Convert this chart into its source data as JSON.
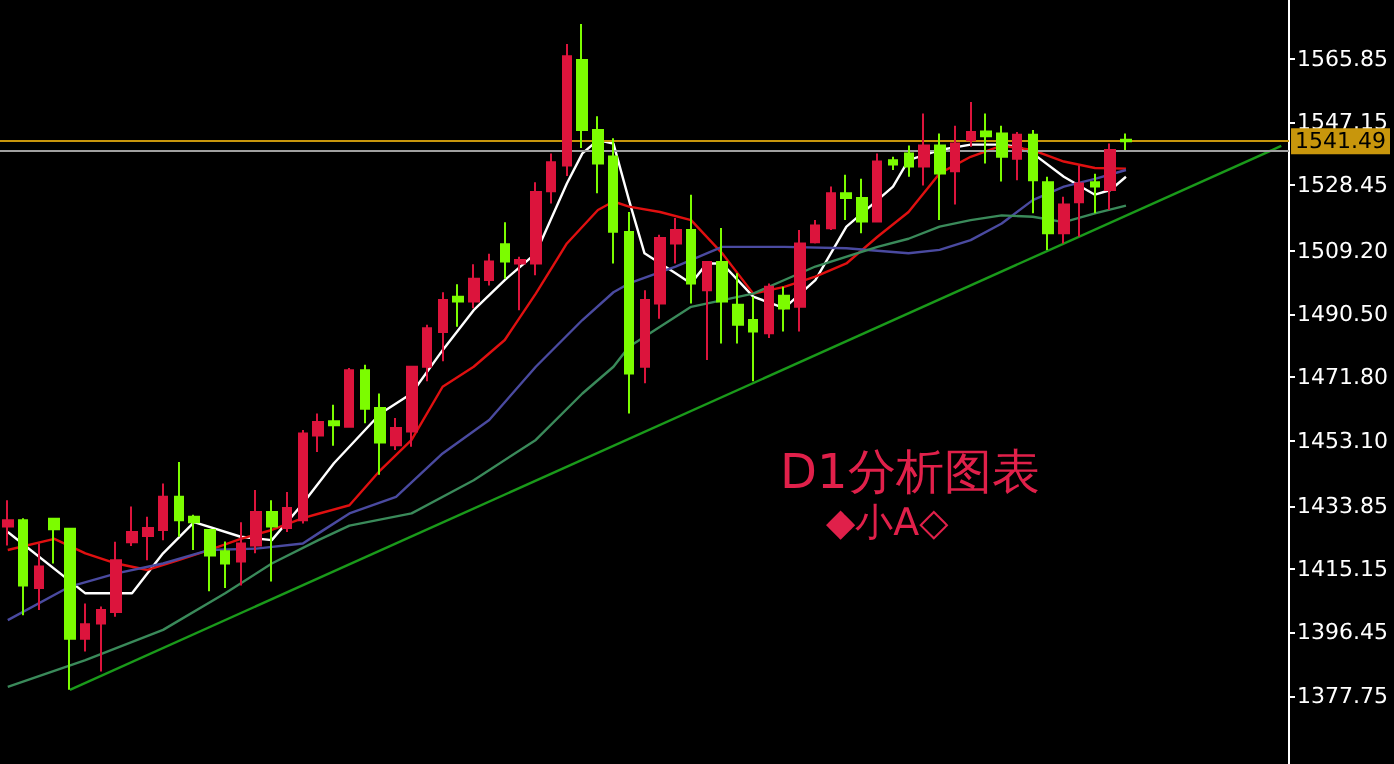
{
  "chart_data": {
    "type": "candlestick",
    "categories": [
      null,
      null,
      null,
      null,
      null,
      null,
      null,
      null,
      null,
      null,
      null,
      null,
      null,
      null,
      null,
      null,
      null,
      null,
      null,
      null,
      null,
      null,
      null,
      null,
      null,
      null,
      null,
      null,
      null,
      null,
      null,
      null,
      null,
      null,
      null,
      null,
      null,
      null,
      null,
      null,
      null,
      null,
      null,
      null,
      null,
      null,
      null,
      null,
      null,
      null,
      null,
      null,
      null,
      null,
      null,
      null,
      null,
      null,
      null,
      null,
      null,
      null,
      null,
      null,
      null,
      null,
      null,
      null,
      null,
      null,
      null,
      null,
      null,
      null,
      null,
      null,
      null,
      null,
      null,
      null,
      null,
      null,
      null
    ],
    "ohlc": [
      [
        1427.7,
        1435.5,
        1422.1,
        1429.6
      ],
      [
        1429.6,
        1430.2,
        1401.5,
        1410.3
      ],
      [
        1409.6,
        1422.7,
        1403.1,
        1415.9
      ],
      [
        1430.0,
        1430.0,
        1416.8,
        1426.9
      ],
      [
        1427.1,
        1427.1,
        1379.5,
        1394.6
      ],
      [
        1394.6,
        1405.0,
        1390.8,
        1398.9
      ],
      [
        1399.1,
        1404.1,
        1384.9,
        1403.1
      ],
      [
        1402.5,
        1423.2,
        1401.1,
        1417.8
      ],
      [
        1423.1,
        1433.6,
        1422.0,
        1426.1
      ],
      [
        1424.9,
        1430.6,
        1417.8,
        1427.3
      ],
      [
        1426.7,
        1440.4,
        1423.7,
        1436.5
      ],
      [
        1436.5,
        1446.8,
        1424.7,
        1429.6
      ],
      [
        1430.6,
        1431.2,
        1420.8,
        1429.0
      ],
      [
        1426.7,
        1426.7,
        1408.6,
        1419.2
      ],
      [
        1420.4,
        1423.3,
        1409.6,
        1416.8
      ],
      [
        1417.4,
        1429.0,
        1410.3,
        1422.7
      ],
      [
        1422.1,
        1438.5,
        1419.8,
        1432.0
      ],
      [
        1432.0,
        1435.5,
        1411.5,
        1427.7
      ],
      [
        1427.3,
        1437.9,
        1426.1,
        1433.2
      ],
      [
        1429.6,
        1456.2,
        1428.6,
        1455.2
      ],
      [
        1454.6,
        1461.1,
        1449.7,
        1458.6
      ],
      [
        1458.8,
        1463.7,
        1451.6,
        1457.6
      ],
      [
        1457.2,
        1474.5,
        1457.2,
        1473.9
      ],
      [
        1473.9,
        1475.5,
        1458.2,
        1462.5
      ],
      [
        1462.7,
        1467.0,
        1443.0,
        1452.5
      ],
      [
        1451.7,
        1459.8,
        1450.3,
        1456.8
      ],
      [
        1455.8,
        1474.9,
        1451.3,
        1474.9
      ],
      [
        1474.9,
        1487.3,
        1470.6,
        1486.3
      ],
      [
        1485.2,
        1496.9,
        1476.5,
        1494.6
      ],
      [
        1495.6,
        1499.3,
        1486.7,
        1494.2
      ],
      [
        1494.2,
        1505.2,
        1492.2,
        1500.9
      ],
      [
        1500.5,
        1508.3,
        1498.9,
        1506.0
      ],
      [
        1511.1,
        1517.6,
        1500.9,
        1506.0
      ],
      [
        1505.4,
        1507.4,
        1491.6,
        1506.4
      ],
      [
        1505.4,
        1529.4,
        1501.9,
        1526.5
      ],
      [
        1526.7,
        1537.9,
        1523.1,
        1535.3
      ],
      [
        1534.3,
        1570.2,
        1531.2,
        1566.6
      ],
      [
        1565.5,
        1576.1,
        1539.5,
        1544.8
      ],
      [
        1544.8,
        1548.9,
        1526.1,
        1534.9
      ],
      [
        1537.0,
        1542.4,
        1505.4,
        1514.8
      ],
      [
        1514.7,
        1520.6,
        1461.1,
        1472.9
      ],
      [
        1474.9,
        1497.5,
        1470.0,
        1494.6
      ],
      [
        1493.6,
        1513.9,
        1489.1,
        1512.9
      ],
      [
        1511.3,
        1518.8,
        1505.4,
        1515.3
      ],
      [
        1515.3,
        1525.7,
        1493.6,
        1499.5
      ],
      [
        1497.5,
        1505.8,
        1476.9,
        1505.8
      ],
      [
        1505.8,
        1515.9,
        1481.8,
        1494.2
      ],
      [
        1493.2,
        1502.5,
        1481.8,
        1487.3
      ],
      [
        1488.7,
        1495.6,
        1470.6,
        1485.3
      ],
      [
        1484.8,
        1499.5,
        1483.4,
        1498.5
      ],
      [
        1495.9,
        1498.5,
        1485.3,
        1492.1
      ],
      [
        1492.6,
        1515.3,
        1485.3,
        1511.3
      ],
      [
        1511.7,
        1518.2,
        1511.3,
        1516.6
      ],
      [
        1515.8,
        1528.1,
        1515.3,
        1526.1
      ],
      [
        1526.1,
        1531.6,
        1518.2,
        1524.7
      ],
      [
        1524.7,
        1530.4,
        1514.3,
        1517.8
      ],
      [
        1517.8,
        1537.9,
        1517.8,
        1535.5
      ],
      [
        1535.9,
        1536.9,
        1533.0,
        1534.6
      ],
      [
        1537.9,
        1540.2,
        1531.0,
        1534.0
      ],
      [
        1534.0,
        1549.7,
        1528.4,
        1540.2
      ],
      [
        1540.2,
        1543.8,
        1518.2,
        1532.0
      ],
      [
        1532.6,
        1546.1,
        1522.8,
        1540.8
      ],
      [
        1541.8,
        1553.1,
        1539.9,
        1544.2
      ],
      [
        1544.4,
        1549.7,
        1534.9,
        1543.0
      ],
      [
        1543.8,
        1546.1,
        1529.6,
        1536.9
      ],
      [
        1536.3,
        1544.2,
        1530.0,
        1543.4
      ],
      [
        1543.4,
        1544.8,
        1520.2,
        1530.0
      ],
      [
        1529.4,
        1531.0,
        1509.4,
        1514.3
      ],
      [
        1514.3,
        1525.1,
        1511.3,
        1522.8
      ],
      [
        1523.5,
        1534.3,
        1513.3,
        1529.0
      ],
      [
        1529.4,
        1531.9,
        1520.2,
        1528.1
      ],
      [
        1527.1,
        1540.8,
        1521.2,
        1538.9
      ],
      [
        1541.9,
        1543.8,
        1538.9,
        1541.5
      ],
      null,
      null,
      null,
      null,
      null,
      null,
      null,
      null,
      null,
      null
    ],
    "colors": [
      "#dc143c",
      "#7cfc00",
      "#dc143c",
      "#7cfc00",
      "#7cfc00",
      "#dc143c",
      "#dc143c",
      "#dc143c",
      "#dc143c",
      "#dc143c",
      "#dc143c",
      "#7cfc00",
      "#7cfc00",
      "#7cfc00",
      "#7cfc00",
      "#dc143c",
      "#dc143c",
      "#7cfc00",
      "#dc143c",
      "#dc143c",
      "#dc143c",
      "#7cfc00",
      "#dc143c",
      "#7cfc00",
      "#7cfc00",
      "#dc143c",
      "#dc143c",
      "#dc143c",
      "#dc143c",
      "#7cfc00",
      "#dc143c",
      "#dc143c",
      "#7cfc00",
      "#dc143c",
      "#dc143c",
      "#dc143c",
      "#dc143c",
      "#7cfc00",
      "#7cfc00",
      "#7cfc00",
      "#7cfc00",
      "#dc143c",
      "#dc143c",
      "#dc143c",
      "#7cfc00",
      "#dc143c",
      "#7cfc00",
      "#7cfc00",
      "#7cfc00",
      "#dc143c",
      "#7cfc00",
      "#dc143c",
      "#dc143c",
      "#dc143c",
      "#7cfc00",
      "#7cfc00",
      "#dc143c",
      "#7cfc00",
      "#7cfc00",
      "#dc143c",
      "#7cfc00",
      "#dc143c",
      "#dc143c",
      "#7cfc00",
      "#7cfc00",
      "#dc143c",
      "#7cfc00",
      "#7cfc00",
      "#dc143c",
      "#dc143c",
      "#7cfc00",
      "#dc143c",
      "#7cfc00",
      null,
      null,
      null,
      null,
      null,
      null,
      null,
      null,
      null,
      null
    ],
    "series": [
      {
        "type": "line",
        "color": "#ffffff",
        "values": [
          1426.1,
          null,
          null,
          null,
          null,
          1408.0,
          null,
          null,
          1408.0,
          null,
          1419.8,
          null,
          1429.0,
          null,
          null,
          1424.7,
          null,
          1423.7,
          null,
          1434.5,
          null,
          1446.4,
          null,
          null,
          1461.1,
          null,
          1467.0,
          null,
          1479.8,
          null,
          1491.6,
          null,
          1500.5,
          null,
          1508.4,
          null,
          1529.0,
          1537.9,
          1541.8,
          1540.8,
          1524.1,
          1508.4,
          null,
          1502.5,
          1499.5,
          1505.4,
          1505.4,
          null,
          1495.6,
          null,
          1492.2,
          null,
          1500.5,
          null,
          1516.3,
          null,
          1524.1,
          1528.1,
          1535.9,
          null,
          1538.9,
          null,
          1540.5,
          null,
          1540.5,
          1539.9,
          1537.9,
          null,
          1531.0,
          null,
          1525.7,
          1527.1,
          1531.0,
          null,
          null,
          null,
          null,
          null,
          null,
          null,
          null,
          null,
          null
        ]
      },
      {
        "type": "line",
        "color": "#e01010",
        "values": [
          1420.8,
          null,
          null,
          1424.1,
          null,
          1419.8,
          null,
          1416.8,
          null,
          1414.9,
          null,
          1417.8,
          null,
          1420.8,
          null,
          1424.1,
          null,
          1426.7,
          null,
          1430.2,
          1431.5,
          null,
          1434.0,
          null,
          1444.4,
          null,
          1453.3,
          null,
          1469.0,
          null,
          1474.9,
          null,
          1482.8,
          null,
          1496.5,
          null,
          1511.3,
          null,
          1521.2,
          1523.7,
          1522.2,
          null,
          1520.6,
          null,
          1518.2,
          null,
          1508.4,
          null,
          1496.5,
          null,
          1498.5,
          null,
          1501.5,
          null,
          1505.4,
          null,
          1513.3,
          null,
          1520.6,
          null,
          1532.0,
          null,
          1536.9,
          null,
          1540.2,
          null,
          1538.9,
          null,
          1535.5,
          null,
          1533.6,
          null,
          1533.4,
          null,
          null,
          null,
          null,
          null,
          null,
          null,
          null,
          null,
          null
        ]
      },
      {
        "type": "line",
        "color": "#4a4aa0",
        "values": [
          1400.1,
          null,
          null,
          null,
          1410.0,
          null,
          null,
          1413.9,
          null,
          null,
          1416.8,
          null,
          null,
          1420.8,
          null,
          null,
          1421.2,
          null,
          null,
          1422.7,
          1425.7,
          null,
          1431.6,
          null,
          null,
          1436.5,
          null,
          null,
          1449.3,
          null,
          null,
          1459.2,
          null,
          null,
          1474.9,
          null,
          null,
          1488.7,
          null,
          1496.9,
          1499.5,
          null,
          null,
          1504.5,
          null,
          null,
          1510.3,
          null,
          null,
          null,
          1510.3,
          null,
          null,
          null,
          1509.9,
          null,
          null,
          null,
          1508.4,
          null,
          1509.4,
          null,
          1512.3,
          null,
          1517.2,
          null,
          1524.1,
          null,
          1528.1,
          null,
          1530.4,
          null,
          1533.0,
          null,
          null,
          null,
          null,
          null,
          null,
          null,
          null,
          null,
          null
        ]
      },
      {
        "type": "line",
        "color": "#3a8a5a",
        "values": [
          1380.4,
          null,
          null,
          null,
          null,
          1388.3,
          null,
          null,
          null,
          null,
          1397.2,
          null,
          null,
          null,
          1408.0,
          null,
          null,
          1416.8,
          null,
          null,
          1423.7,
          null,
          1428.0,
          null,
          null,
          null,
          1431.6,
          null,
          null,
          null,
          1441.4,
          null,
          null,
          null,
          1453.3,
          null,
          null,
          1467.0,
          null,
          1474.9,
          1480.8,
          null,
          null,
          null,
          1492.6,
          null,
          null,
          null,
          1496.5,
          null,
          null,
          null,
          1504.5,
          null,
          null,
          null,
          1510.3,
          null,
          1512.7,
          null,
          1516.3,
          null,
          1518.2,
          null,
          1519.6,
          null,
          1519.2,
          null,
          1517.6,
          null,
          1520.2,
          null,
          1522.5,
          null,
          null,
          null,
          null,
          null,
          null,
          null,
          null,
          null,
          null
        ]
      },
      {
        "type": "line",
        "color": "#1a9a1a",
        "values": [
          null,
          null,
          null,
          null,
          1379.5,
          null,
          null,
          null,
          null,
          null,
          null,
          null,
          null,
          null,
          null,
          null,
          null,
          null,
          null,
          null,
          null,
          null,
          null,
          null,
          null,
          null,
          null,
          null,
          null,
          null,
          null,
          null,
          null,
          null,
          null,
          null,
          null,
          null,
          null,
          null,
          null,
          null,
          null,
          null,
          null,
          null,
          null,
          null,
          null,
          null,
          null,
          null,
          null,
          null,
          null,
          null,
          null,
          null,
          null,
          null,
          null,
          null,
          null,
          null,
          null,
          null,
          null,
          null,
          null,
          null,
          null,
          null,
          null,
          null,
          null,
          null,
          null,
          null,
          null,
          null,
          null,
          null,
          1540.1
        ]
      }
    ],
    "ylim": [
      1357.6,
      1583.2
    ],
    "yticks": [
      {
        "value": 1377.75,
        "label": "1377.75"
      },
      {
        "value": 1396.45,
        "label": "1396.45"
      },
      {
        "value": 1415.15,
        "label": "1415.15"
      },
      {
        "value": 1433.85,
        "label": "1433.85"
      },
      {
        "value": 1453.1,
        "label": "1453.10"
      },
      {
        "value": 1471.8,
        "label": "1471.80"
      },
      {
        "value": 1490.5,
        "label": "1490.50"
      },
      {
        "value": 1509.2,
        "label": "1509.20"
      },
      {
        "value": 1528.45,
        "label": "1528.45"
      },
      {
        "value": 1547.15,
        "label": "1547.15"
      },
      {
        "value": 1565.85,
        "label": "1565.85"
      }
    ],
    "tick_labels": "y",
    "ref_lines": [
      {
        "axis": "y",
        "value": 1538.9,
        "label": null,
        "color": "#a0a0a0"
      },
      {
        "axis": "y",
        "value": 1541.49,
        "label": "1541.49",
        "color": "#c8960c"
      }
    ],
    "annotations": [
      "D1分析图表",
      "◆小A◇"
    ]
  }
}
